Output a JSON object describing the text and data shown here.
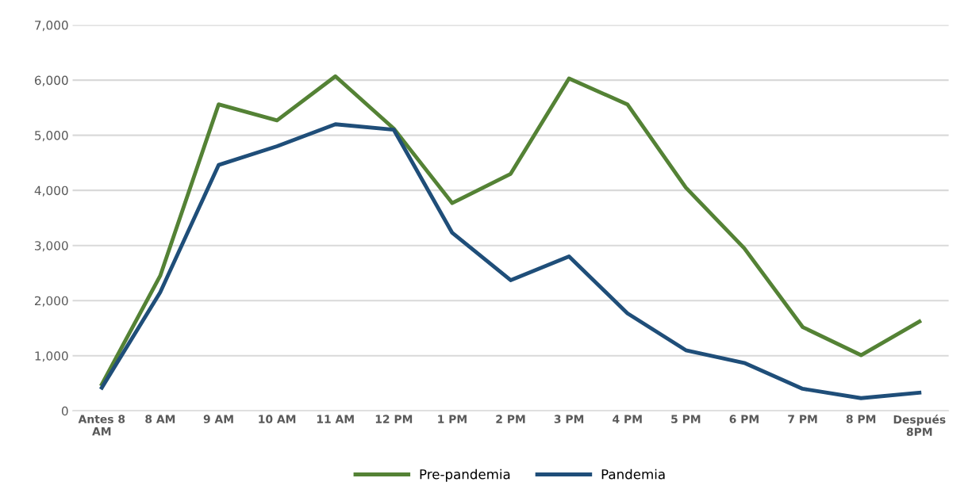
{
  "chart_data": {
    "type": "line",
    "categories": [
      "Antes 8\nAM",
      "8 AM",
      "9 AM",
      "10 AM",
      "11 AM",
      "12 PM",
      "1 PM",
      "2 PM",
      "3 PM",
      "4 PM",
      "5 PM",
      "6 PM",
      "7 PM",
      "8 PM",
      "Después\n8PM"
    ],
    "series": [
      {
        "name": "Pre-pandemia",
        "color": "#548235",
        "values": [
          480,
          2450,
          5560,
          5270,
          6070,
          5120,
          3770,
          4300,
          6030,
          5560,
          4050,
          2950,
          1520,
          1010,
          1620
        ]
      },
      {
        "name": "Pandemia",
        "color": "#1f4e79",
        "values": [
          420,
          2150,
          4460,
          4800,
          5200,
          5100,
          3230,
          2370,
          2800,
          1770,
          1100,
          870,
          400,
          230,
          330
        ]
      }
    ],
    "ylim": [
      0,
      7000
    ],
    "yticks": [
      {
        "value": 0,
        "label": "0"
      },
      {
        "value": 1000,
        "label": "1,000"
      },
      {
        "value": 2000,
        "label": "2,000"
      },
      {
        "value": 3000,
        "label": "3,000"
      },
      {
        "value": 4000,
        "label": "4,000"
      },
      {
        "value": 5000,
        "label": "5,000"
      },
      {
        "value": 6000,
        "label": "6,000"
      },
      {
        "value": 7000,
        "label": "7,000"
      }
    ],
    "grid": "y",
    "legend": "bottom",
    "marker": "none",
    "line_style": "solid"
  }
}
